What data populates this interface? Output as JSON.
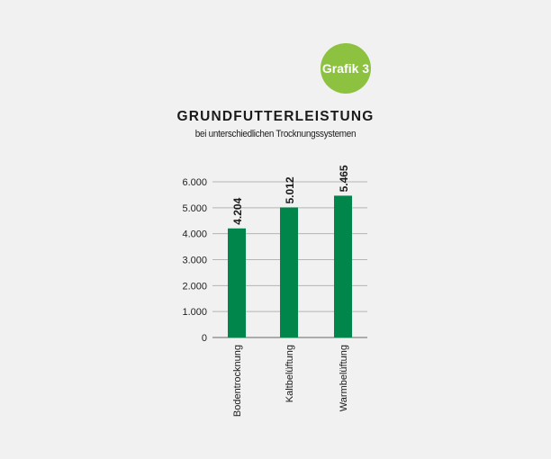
{
  "badge": {
    "label": "Grafik 3",
    "color": "#8cc23f"
  },
  "chart_data": {
    "type": "bar",
    "title": "GRUNDFUTTERLEISTUNG",
    "subtitle": "bei unterschiedlichen Trocknungssystemen",
    "categories": [
      "Bodentrocknung",
      "Kaltbelüftung",
      "Warmbelüftung"
    ],
    "values": [
      4204,
      5012,
      5465
    ],
    "data_labels": [
      "4.204",
      "5.012",
      "5.465"
    ],
    "ylim": [
      0,
      6000
    ],
    "yticks": [
      0,
      1000,
      2000,
      3000,
      4000,
      5000,
      6000
    ],
    "ytick_labels": [
      "0",
      "1.000",
      "2.000",
      "3.000",
      "4.000",
      "5.000",
      "6.000"
    ],
    "grid": true,
    "bar_color": "#00854a"
  }
}
